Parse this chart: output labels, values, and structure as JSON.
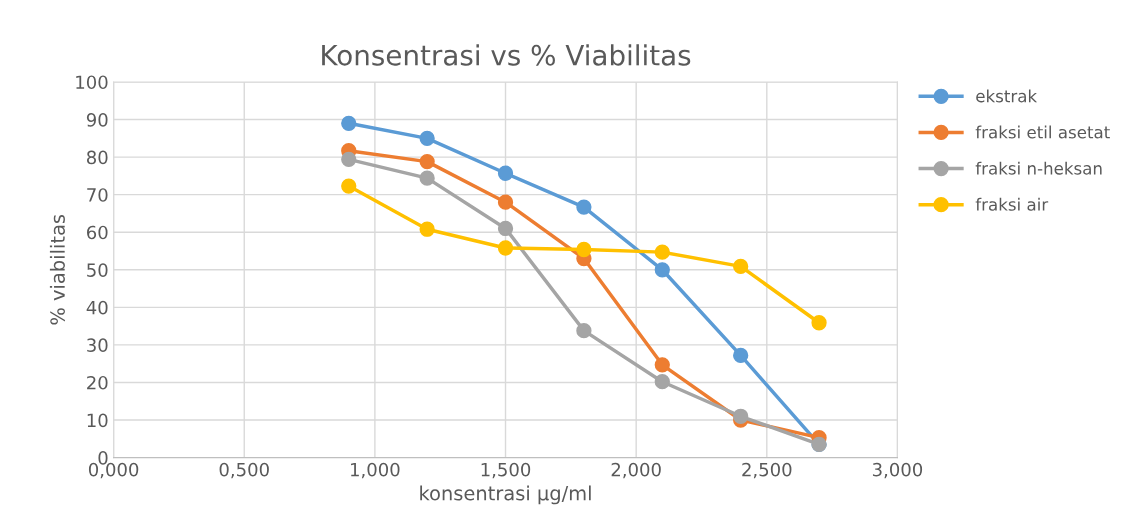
{
  "chart_data": {
    "type": "line",
    "title": "Konsentrasi vs % Viabilitas",
    "xlabel": "konsentrasi µg/ml",
    "ylabel": "% viabilitas",
    "x": [
      0.9,
      1.2,
      1.5,
      1.8,
      2.1,
      2.4,
      2.7
    ],
    "series": [
      {
        "name": "ekstrak",
        "color": "#5b9bd5",
        "values": [
          89,
          85,
          75.7,
          66.7,
          50,
          27.2,
          3.5
        ]
      },
      {
        "name": "fraksi etil asetat",
        "color": "#ed7d31",
        "values": [
          81.7,
          78.8,
          68,
          53,
          24.7,
          10,
          5.3
        ]
      },
      {
        "name": "fraksi n-heksan",
        "color": "#a5a5a5",
        "values": [
          79.4,
          74.4,
          61,
          33.8,
          20.2,
          11,
          3.5
        ]
      },
      {
        "name": "fraksi air",
        "color": "#ffc000",
        "values": [
          72.3,
          60.8,
          55.8,
          55.4,
          54.7,
          50.9,
          35.9
        ]
      }
    ],
    "xlim": [
      0,
      3
    ],
    "xticks": [
      {
        "value": 0,
        "label": "0,000"
      },
      {
        "value": 0.5,
        "label": "0,500"
      },
      {
        "value": 1,
        "label": "1,000"
      },
      {
        "value": 1.5,
        "label": "1,500"
      },
      {
        "value": 2,
        "label": "2,000"
      },
      {
        "value": 2.5,
        "label": "2,500"
      },
      {
        "value": 3,
        "label": "3,000"
      }
    ],
    "ylim": [
      0,
      100
    ],
    "yticks": [
      0,
      10,
      20,
      30,
      40,
      50,
      60,
      70,
      80,
      90,
      100
    ],
    "grid": true,
    "legend": "right",
    "marker": "circle",
    "line_style": "solid"
  }
}
